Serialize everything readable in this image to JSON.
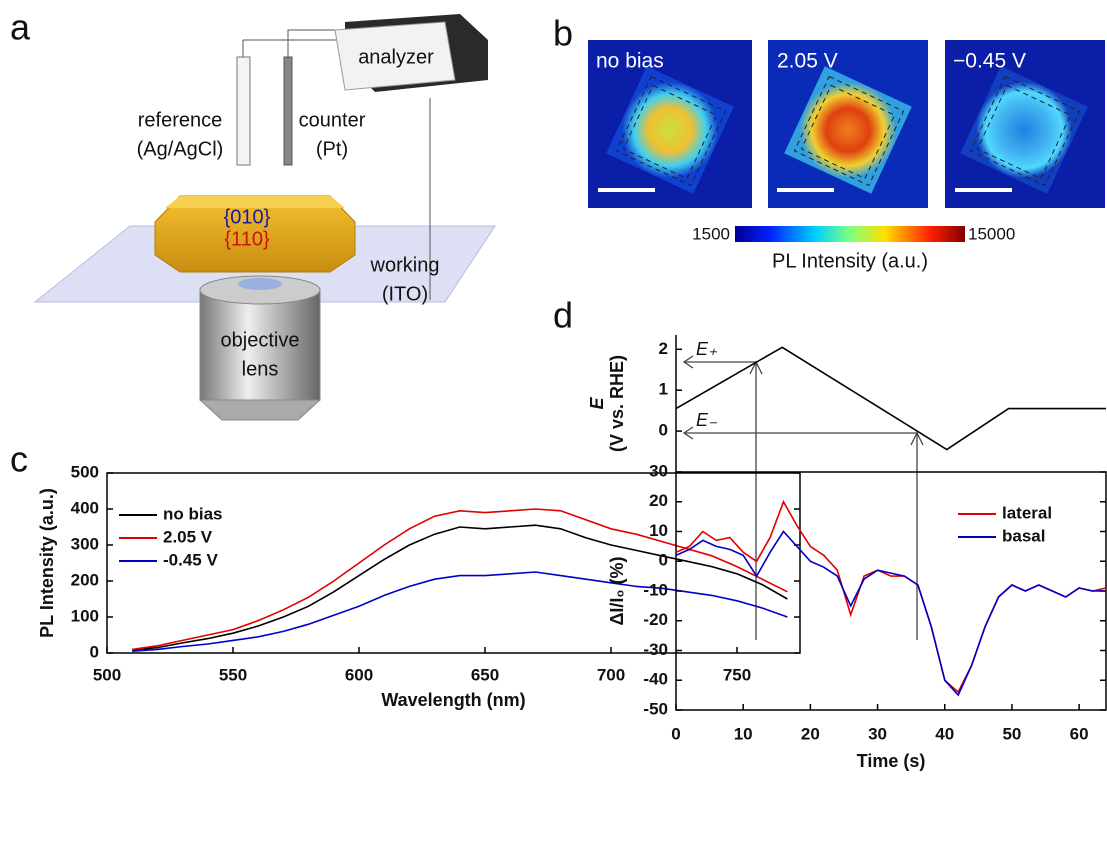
{
  "panel_labels": [
    "a",
    "b",
    "c",
    "d"
  ],
  "diagram": {
    "instrument": "analyzer",
    "reference": [
      "reference",
      "(Ag/AgCl)"
    ],
    "counter": [
      "counter",
      "(Pt)"
    ],
    "facets": [
      "{010}",
      "{110}"
    ],
    "working": [
      "working",
      "(ITO)"
    ],
    "objective": [
      "objective",
      "lens"
    ]
  },
  "images": {
    "labels": [
      "no bias",
      "2.05 V",
      "−0.45 V"
    ],
    "colorbar": {
      "min": 1500,
      "max": 15000,
      "label": "PL Intensity (a.u.)"
    }
  },
  "chart_data": [
    {
      "type": "line",
      "xlabel": "Wavelength (nm)",
      "ylabel": "PL Intensity (a.u.)",
      "xlim": [
        500,
        775
      ],
      "ylim": [
        0,
        500
      ],
      "xticks": [
        500,
        550,
        600,
        650,
        700,
        750
      ],
      "yticks": [
        0,
        100,
        200,
        300,
        400,
        500
      ],
      "legend": "upper left",
      "x": [
        510,
        520,
        530,
        540,
        550,
        560,
        570,
        580,
        590,
        600,
        610,
        620,
        630,
        640,
        650,
        660,
        670,
        680,
        690,
        700,
        710,
        720,
        730,
        740,
        750,
        760,
        770
      ],
      "series": [
        {
          "name": "no bias",
          "color": "#000000",
          "values": [
            8,
            15,
            28,
            40,
            55,
            75,
            100,
            130,
            170,
            215,
            260,
            300,
            330,
            350,
            345,
            350,
            355,
            345,
            320,
            300,
            285,
            270,
            255,
            240,
            220,
            190,
            150
          ]
        },
        {
          "name": "2.05 V",
          "color": "#e00000",
          "values": [
            10,
            20,
            35,
            50,
            65,
            90,
            120,
            155,
            200,
            250,
            300,
            345,
            380,
            395,
            390,
            395,
            400,
            395,
            370,
            345,
            330,
            310,
            290,
            270,
            240,
            205,
            170
          ]
        },
        {
          "name": "-0.45 V",
          "color": "#0000c8",
          "values": [
            5,
            10,
            18,
            25,
            35,
            45,
            60,
            80,
            105,
            130,
            160,
            185,
            205,
            215,
            215,
            220,
            225,
            215,
            205,
            195,
            185,
            180,
            170,
            160,
            145,
            125,
            100
          ]
        }
      ]
    },
    {
      "type": "line",
      "ylabel": [
        "E",
        "(V vs. RHE)"
      ],
      "annotations": [
        "E₊",
        "E₋"
      ],
      "xlim": [
        0,
        64
      ],
      "ylim": [
        -1,
        2.35
      ],
      "yticks": [
        0,
        1,
        2
      ],
      "color": "#000000",
      "x": [
        0,
        15.8,
        40.3,
        49.5,
        64
      ],
      "values": [
        0.55,
        2.05,
        -0.45,
        0.55,
        0.55
      ]
    },
    {
      "type": "line",
      "xlabel": "Time (s)",
      "ylabel": "ΔI/I₀ (%)",
      "xlim": [
        0,
        64
      ],
      "ylim": [
        -50,
        30
      ],
      "xticks": [
        0,
        10,
        20,
        30,
        40,
        50,
        60
      ],
      "yticks": [
        -50,
        -40,
        -30,
        -20,
        -10,
        0,
        10,
        20,
        30
      ],
      "legend": "upper right",
      "x": [
        0,
        2,
        4,
        6,
        8,
        10,
        12,
        14,
        16,
        18,
        20,
        22,
        24,
        26,
        28,
        30,
        32,
        34,
        36,
        38,
        40,
        42,
        44,
        46,
        48,
        50,
        52,
        54,
        56,
        58,
        60,
        62,
        64
      ],
      "series": [
        {
          "name": "lateral",
          "color": "#e00000",
          "values": [
            3,
            5,
            10,
            7,
            8,
            3,
            0,
            8,
            20,
            12,
            5,
            2,
            -3,
            -18,
            -5,
            -3,
            -5,
            -5,
            -8,
            -22,
            -40,
            -44,
            -35,
            -22,
            -12,
            -8,
            -10,
            -8,
            -10,
            -12,
            -9,
            -10,
            -9
          ]
        },
        {
          "name": "basal",
          "color": "#0000c8",
          "values": [
            2,
            4,
            7,
            5,
            4,
            2,
            -5,
            3,
            10,
            5,
            0,
            -2,
            -5,
            -15,
            -6,
            -3,
            -4,
            -5,
            -8,
            -22,
            -40,
            -45,
            -35,
            -22,
            -12,
            -8,
            -10,
            -8,
            -10,
            -12,
            -9,
            -10,
            -10
          ]
        }
      ]
    }
  ]
}
